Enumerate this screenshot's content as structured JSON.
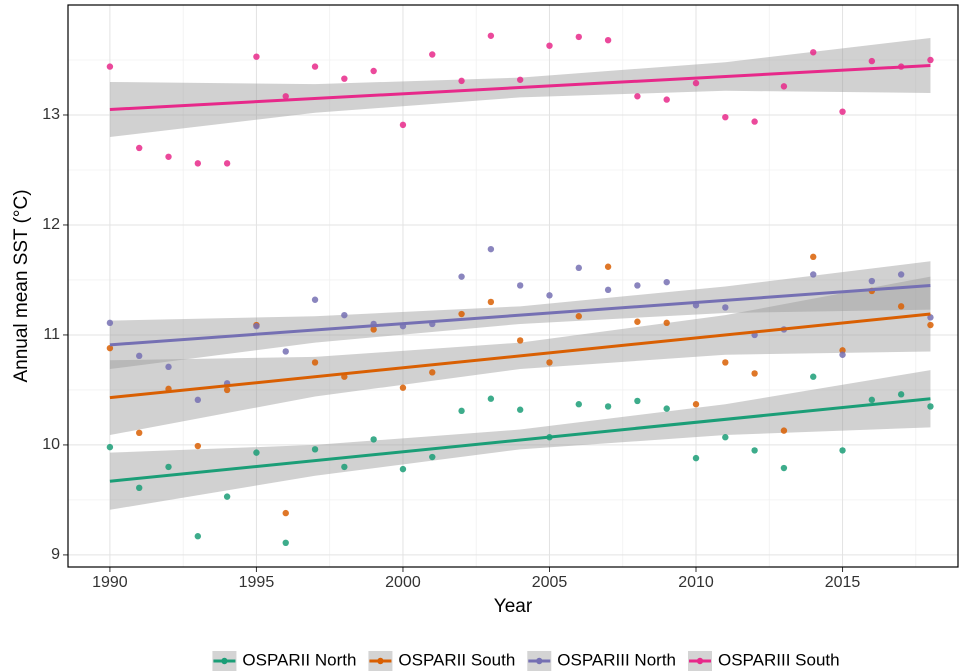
{
  "chart_data": {
    "type": "scatter",
    "x_label": "Year",
    "y_label": "Annual mean SST (°C)",
    "x": [
      1990,
      1991,
      1992,
      1993,
      1994,
      1995,
      1996,
      1997,
      1998,
      1999,
      2000,
      2001,
      2002,
      2003,
      2004,
      2005,
      2006,
      2007,
      2008,
      2009,
      2010,
      2011,
      2012,
      2013,
      2014,
      2015,
      2016,
      2017,
      2018
    ],
    "xlim": [
      1988.57,
      2018.94
    ],
    "xticks": [
      1990,
      1995,
      2000,
      2005,
      2010,
      2015
    ],
    "xminor": [
      1992.5,
      1997.5,
      2002.5,
      2007.5,
      2012.5,
      2017.5
    ],
    "ylim": [
      8.89,
      14.0
    ],
    "yticks": [
      9,
      10,
      11,
      12,
      13
    ],
    "yminor": [
      9.5,
      10.5,
      11.5,
      12.5,
      13.5
    ],
    "grid": true,
    "legend": "bottom",
    "fit_x": [
      1990,
      2018
    ],
    "band_x": [
      1990,
      1997,
      2004,
      2011,
      2018
    ],
    "series": [
      {
        "name": "OSPARII North",
        "color": "#1b9e77",
        "values": [
          9.98,
          9.61,
          9.8,
          9.17,
          9.53,
          9.93,
          9.11,
          9.96,
          9.8,
          10.05,
          9.78,
          9.89,
          10.31,
          10.42,
          10.32,
          10.07,
          10.37,
          10.35,
          10.4,
          10.33,
          9.88,
          10.07,
          9.95,
          9.79,
          10.62,
          9.95,
          10.41,
          10.46,
          10.35
        ],
        "fit": [
          9.67,
          10.42
        ],
        "band_lower": [
          9.41,
          9.72,
          9.96,
          10.09,
          10.16
        ],
        "band_upper": [
          9.93,
          10.0,
          10.14,
          10.37,
          10.68
        ]
      },
      {
        "name": "OSPARII South",
        "color": "#d95f02",
        "values": [
          10.88,
          10.11,
          10.51,
          9.99,
          10.5,
          11.09,
          9.38,
          10.75,
          10.62,
          11.05,
          10.52,
          10.66,
          11.19,
          11.3,
          10.95,
          10.75,
          11.17,
          11.62,
          11.12,
          11.11,
          10.37,
          10.75,
          10.65,
          10.13,
          11.71,
          10.86,
          11.4,
          11.26,
          11.09
        ],
        "fit": [
          10.43,
          11.19
        ],
        "band_lower": [
          10.09,
          10.44,
          10.69,
          10.82,
          10.85
        ],
        "band_upper": [
          10.77,
          10.8,
          10.93,
          11.18,
          11.53
        ]
      },
      {
        "name": "OSPARIII North",
        "color": "#7570b3",
        "values": [
          11.11,
          10.81,
          10.71,
          10.41,
          10.56,
          11.08,
          10.85,
          11.32,
          11.18,
          11.1,
          11.08,
          11.1,
          11.53,
          11.78,
          11.45,
          11.36,
          11.61,
          11.41,
          11.45,
          11.48,
          11.27,
          11.25,
          11.0,
          11.05,
          11.55,
          10.82,
          11.49,
          11.55,
          11.16
        ],
        "fit": [
          10.91,
          11.45
        ],
        "band_lower": [
          10.69,
          10.93,
          11.1,
          11.2,
          11.23
        ],
        "band_upper": [
          11.13,
          11.17,
          11.26,
          11.44,
          11.67
        ]
      },
      {
        "name": "OSPARIII South",
        "color": "#e7298a",
        "values": [
          13.44,
          12.7,
          12.62,
          12.56,
          12.56,
          13.53,
          13.17,
          13.44,
          13.33,
          13.4,
          12.91,
          13.55,
          13.31,
          13.72,
          13.32,
          13.63,
          13.71,
          13.68,
          13.17,
          13.14,
          13.29,
          12.98,
          12.94,
          13.26,
          13.57,
          13.03,
          13.49,
          13.44,
          13.5
        ],
        "fit": [
          13.05,
          13.45
        ],
        "band_lower": [
          12.8,
          13.02,
          13.16,
          13.22,
          13.2
        ],
        "band_upper": [
          13.3,
          13.28,
          13.34,
          13.48,
          13.7
        ]
      }
    ]
  }
}
